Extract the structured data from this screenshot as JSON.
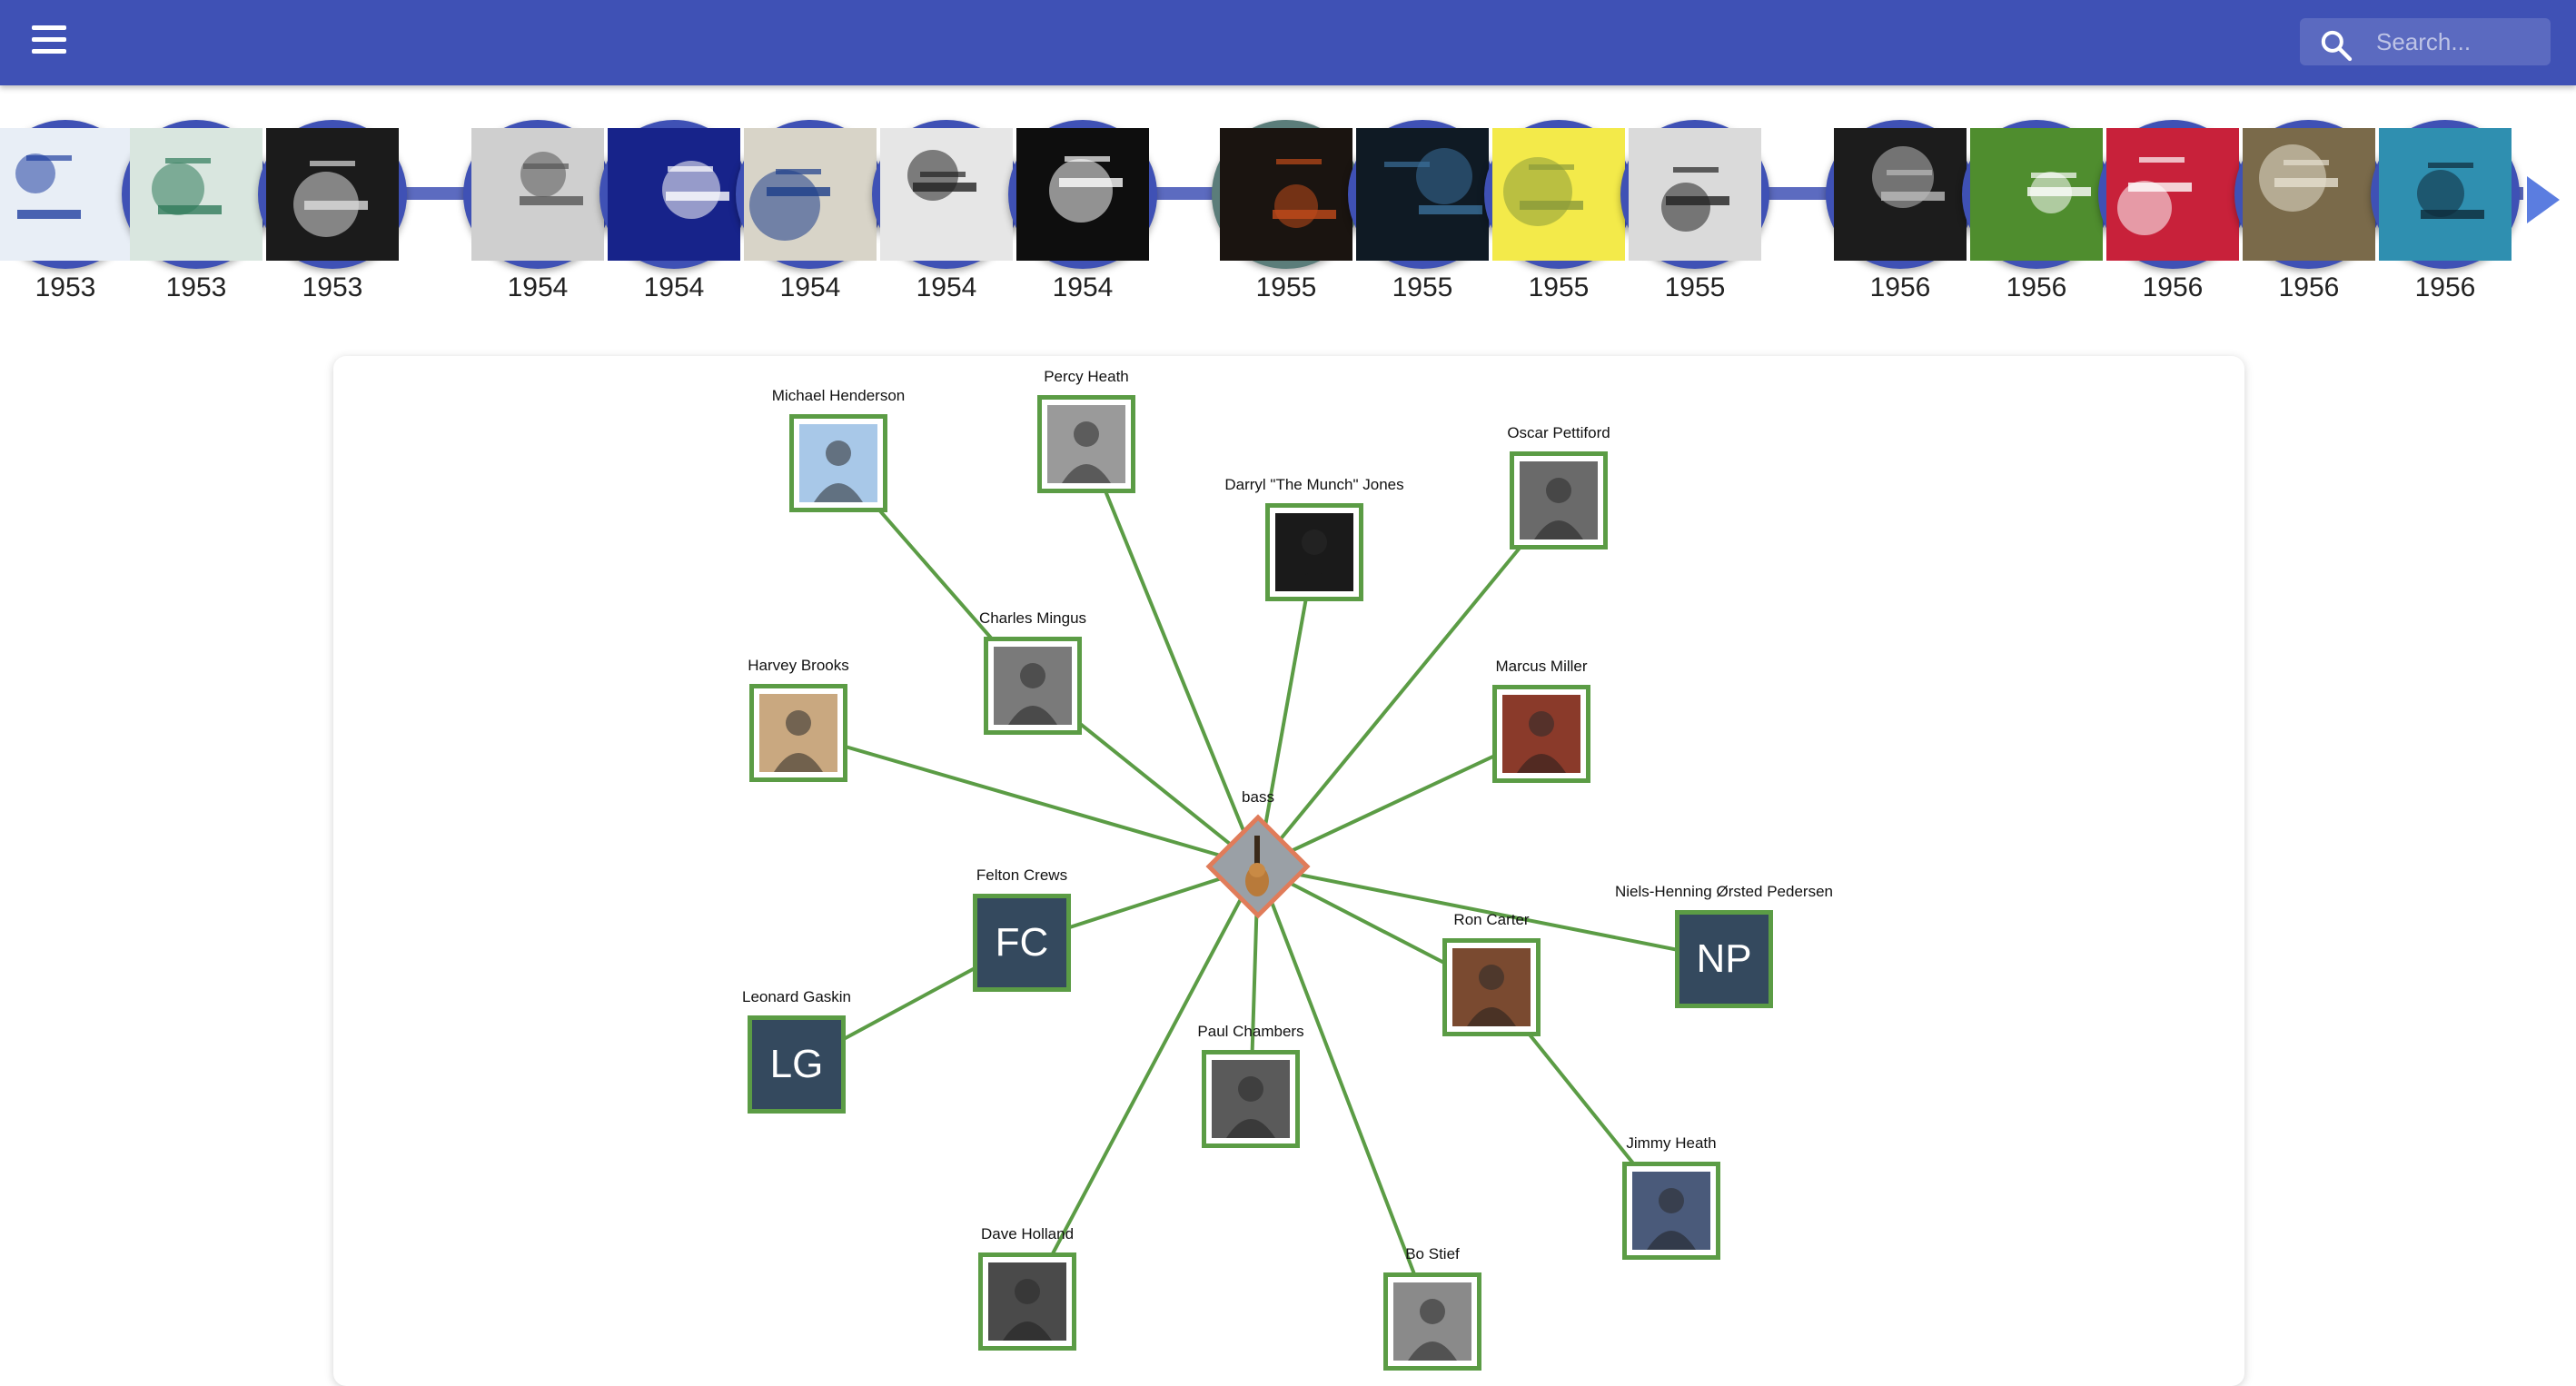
{
  "app": {
    "search_placeholder": "Search..."
  },
  "timeline": {
    "albums": [
      {
        "year": "1953",
        "bg": "#e8eef6",
        "accent": "#1f3fa0"
      },
      {
        "year": "1953",
        "bg": "#d9e6df",
        "accent": "#2f7a5a"
      },
      {
        "year": "1953",
        "bg": "#1b1b1b",
        "accent": "#dcdcdc"
      },
      {
        "year": "1954",
        "bg": "#cfcfcf",
        "accent": "#555555"
      },
      {
        "year": "1954",
        "bg": "#17238a",
        "accent": "#ffffff"
      },
      {
        "year": "1954",
        "bg": "#d8d4c8",
        "accent": "#1d3d8a"
      },
      {
        "year": "1954",
        "bg": "#e6e6e6",
        "accent": "#222222"
      },
      {
        "year": "1954",
        "bg": "#0e0e0e",
        "accent": "#ffffff"
      },
      {
        "year": "1955",
        "bg": "#1a1410",
        "accent": "#c04a1a"
      },
      {
        "year": "1955",
        "bg": "#0f1a24",
        "accent": "#3a6f9a"
      },
      {
        "year": "1955",
        "bg": "#f3ea4a",
        "accent": "#8a9a3a"
      },
      {
        "year": "1955",
        "bg": "#dadada",
        "accent": "#222222"
      },
      {
        "year": "1956",
        "bg": "#1c1c1c",
        "accent": "#bbbbbb"
      },
      {
        "year": "1956",
        "bg": "#4f8d2e",
        "accent": "#ffffff"
      },
      {
        "year": "1956",
        "bg": "#c8213a",
        "accent": "#ffffff"
      },
      {
        "year": "1956",
        "bg": "#7a6a4a",
        "accent": "#e6e0d0"
      },
      {
        "year": "1956",
        "bg": "#2f8fb0",
        "accent": "#0e2a3a"
      }
    ]
  },
  "graph": {
    "hub": {
      "label": "bass"
    },
    "edge_color": "#5b9c45",
    "hub_color": "#e07c5a",
    "nodes": [
      {
        "id": "mh",
        "label": "Michael Henderson",
        "type": "photo",
        "tone": "#a8c8e8"
      },
      {
        "id": "ph",
        "label": "Percy Heath",
        "type": "photo",
        "tone": "#9a9a9a"
      },
      {
        "id": "dj",
        "label": "Darryl \"The Munch\" Jones",
        "type": "photo",
        "tone": "#1a1a1a"
      },
      {
        "id": "op",
        "label": "Oscar Pettiford",
        "type": "photo",
        "tone": "#6a6a6a"
      },
      {
        "id": "cm",
        "label": "Charles Mingus",
        "type": "photo",
        "tone": "#7a7a7a"
      },
      {
        "id": "hb",
        "label": "Harvey Brooks",
        "type": "photo",
        "tone": "#c9a880"
      },
      {
        "id": "mm",
        "label": "Marcus Miller",
        "type": "photo",
        "tone": "#8a3a2a"
      },
      {
        "id": "fc",
        "label": "Felton Crews",
        "type": "initials",
        "initials": "FC"
      },
      {
        "id": "np",
        "label": "Niels-Henning Ørsted Pedersen",
        "type": "initials",
        "initials": "NP"
      },
      {
        "id": "rc",
        "label": "Ron Carter",
        "type": "photo",
        "tone": "#7a4a30"
      },
      {
        "id": "lg",
        "label": "Leonard Gaskin",
        "type": "initials",
        "initials": "LG"
      },
      {
        "id": "pc",
        "label": "Paul Chambers",
        "type": "photo",
        "tone": "#5a5a5a"
      },
      {
        "id": "jh",
        "label": "Jimmy Heath",
        "type": "photo",
        "tone": "#4a5a7a"
      },
      {
        "id": "dh",
        "label": "Dave Holland",
        "type": "photo",
        "tone": "#4a4a4a"
      },
      {
        "id": "bs",
        "label": "Bo Stief",
        "type": "photo",
        "tone": "#8a8a8a"
      }
    ]
  }
}
